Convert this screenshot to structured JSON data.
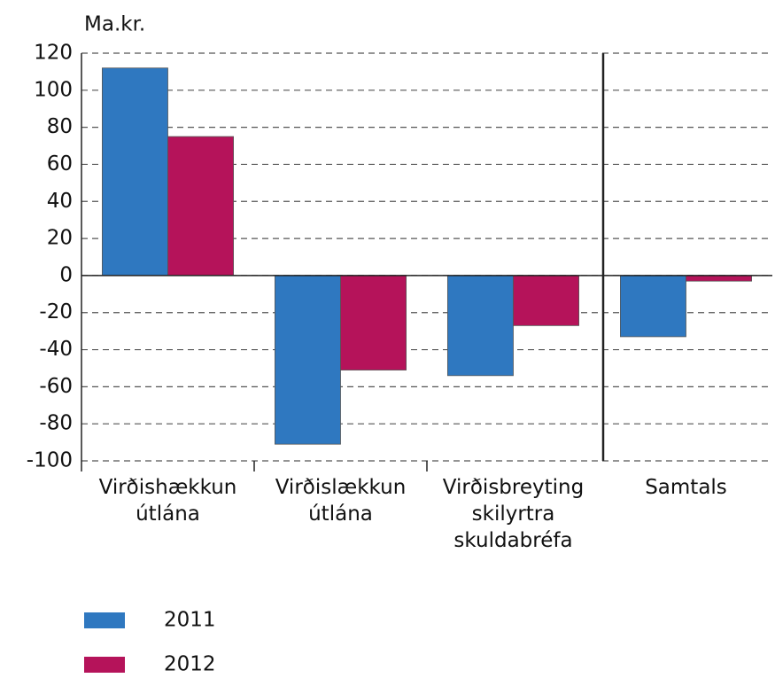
{
  "chart_data": {
    "type": "bar",
    "y_label": "Ma.kr.",
    "categories": [
      "Virðishækkun útlána",
      "Virðislækkun útlána",
      "Virðisbreyting skilyrtra skuldabréfa",
      "Samtals"
    ],
    "series": [
      {
        "name": "2011",
        "color": "#2f78c0",
        "values": [
          112,
          -91,
          -54,
          -33
        ]
      },
      {
        "name": "2012",
        "color": "#b5135a",
        "values": [
          75,
          -51,
          -27,
          -3
        ]
      }
    ],
    "ylim": [
      -100,
      120
    ],
    "yticks": [
      -100,
      -80,
      -60,
      -40,
      -20,
      0,
      20,
      40,
      60,
      80,
      100,
      120
    ],
    "grid": true
  }
}
